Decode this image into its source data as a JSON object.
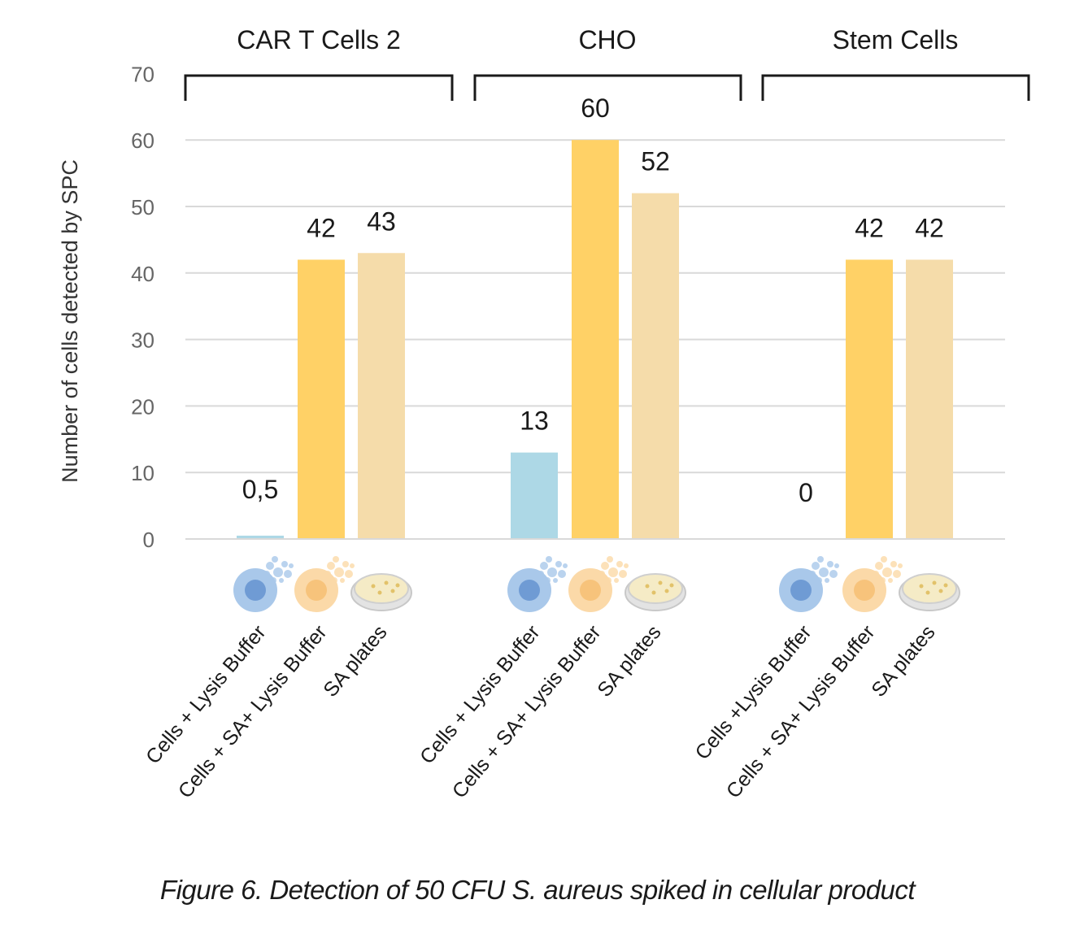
{
  "chart_data": {
    "type": "bar",
    "ylabel": "Number of cells detected by SPC",
    "ylim": [
      0,
      70
    ],
    "yticks": [
      0,
      10,
      20,
      30,
      40,
      50,
      60,
      70
    ],
    "grid": true,
    "groups": [
      {
        "name": "CAR T Cells 2",
        "bars": [
          {
            "category": "Cells + Lysis Buffer",
            "value": 0.5,
            "label": "0,5",
            "color": "#add8e6",
            "icon": "lysed-cell-icon"
          },
          {
            "category": "Cells + SA+ Lysis Buffer",
            "value": 42,
            "label": "42",
            "color": "#ffd166",
            "icon": "sa-lysed-cell-icon"
          },
          {
            "category": "SA plates",
            "value": 43,
            "label": "43",
            "color": "#f5dcaa",
            "icon": "petri-dish-icon"
          }
        ]
      },
      {
        "name": "CHO",
        "bars": [
          {
            "category": "Cells + Lysis Buffer",
            "value": 13,
            "label": "13",
            "color": "#add8e6",
            "icon": "lysed-cell-icon"
          },
          {
            "category": "Cells + SA+ Lysis Buffer",
            "value": 60,
            "label": "60",
            "color": "#ffd166",
            "icon": "sa-lysed-cell-icon"
          },
          {
            "category": "SA plates",
            "value": 52,
            "label": "52",
            "color": "#f5dcaa",
            "icon": "petri-dish-icon"
          }
        ]
      },
      {
        "name": "Stem Cells",
        "bars": [
          {
            "category": "Cells +Lysis Buffer",
            "value": 0,
            "label": "0",
            "color": "#add8e6",
            "icon": "lysed-cell-icon"
          },
          {
            "category": "Cells + SA+ Lysis Buffer",
            "value": 42,
            "label": "42",
            "color": "#ffd166",
            "icon": "sa-lysed-cell-icon"
          },
          {
            "category": "SA plates",
            "value": 42,
            "label": "42",
            "color": "#f5dcaa",
            "icon": "petri-dish-icon"
          }
        ]
      }
    ]
  },
  "caption": "Figure 6. Detection of 50 CFU S. aureus spiked in cellular product"
}
